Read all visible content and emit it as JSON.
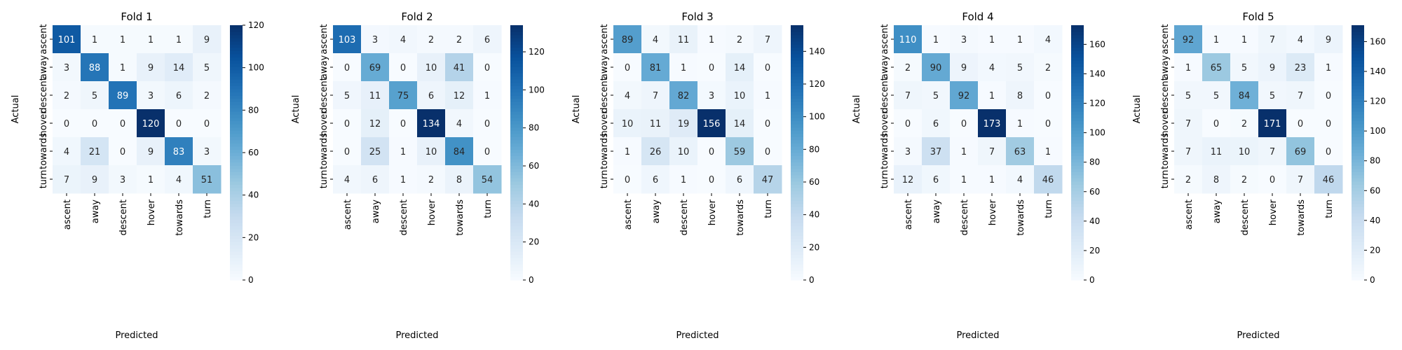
{
  "figure": {
    "xlabel": "Predicted",
    "ylabel": "Actual",
    "colormap": "Blues",
    "colormap_stops": [
      "#f7fbff",
      "#deebf7",
      "#c6dbef",
      "#9ecae1",
      "#6baed6",
      "#4292c6",
      "#2171b5",
      "#08519c",
      "#08306b"
    ]
  },
  "chart_data": [
    {
      "type": "heatmap",
      "title": "Fold 1",
      "x_categories": [
        "ascent",
        "away",
        "descent",
        "hover",
        "towards",
        "turn"
      ],
      "y_categories": [
        "ascent",
        "away",
        "descent",
        "hover",
        "towards",
        "turn"
      ],
      "values": [
        [
          101,
          1,
          1,
          1,
          1,
          9
        ],
        [
          3,
          88,
          1,
          9,
          14,
          5
        ],
        [
          2,
          5,
          89,
          3,
          6,
          2
        ],
        [
          0,
          0,
          0,
          120,
          0,
          0
        ],
        [
          4,
          21,
          0,
          9,
          83,
          3
        ],
        [
          7,
          9,
          3,
          1,
          4,
          51
        ]
      ],
      "colorbar": {
        "range": [
          0,
          120
        ],
        "ticks": [
          0,
          20,
          40,
          60,
          80,
          100,
          120
        ]
      }
    },
    {
      "type": "heatmap",
      "title": "Fold 2",
      "x_categories": [
        "ascent",
        "away",
        "descent",
        "hover",
        "towards",
        "turn"
      ],
      "y_categories": [
        "ascent",
        "away",
        "descent",
        "hover",
        "towards",
        "turn"
      ],
      "values": [
        [
          103,
          3,
          4,
          2,
          2,
          6
        ],
        [
          0,
          69,
          0,
          10,
          41,
          0
        ],
        [
          5,
          11,
          75,
          6,
          12,
          1
        ],
        [
          0,
          12,
          0,
          134,
          4,
          0
        ],
        [
          0,
          25,
          1,
          10,
          84,
          0
        ],
        [
          4,
          6,
          1,
          2,
          8,
          54
        ]
      ],
      "colorbar": {
        "range": [
          0,
          134
        ],
        "ticks": [
          0,
          20,
          40,
          60,
          80,
          100,
          120
        ]
      }
    },
    {
      "type": "heatmap",
      "title": "Fold 3",
      "x_categories": [
        "ascent",
        "away",
        "descent",
        "hover",
        "towards",
        "turn"
      ],
      "y_categories": [
        "ascent",
        "away",
        "descent",
        "hover",
        "towards",
        "turn"
      ],
      "values": [
        [
          89,
          4,
          11,
          1,
          2,
          7
        ],
        [
          0,
          81,
          1,
          0,
          14,
          0
        ],
        [
          4,
          7,
          82,
          3,
          10,
          1
        ],
        [
          10,
          11,
          19,
          156,
          14,
          0
        ],
        [
          1,
          26,
          10,
          0,
          59,
          0
        ],
        [
          0,
          6,
          1,
          0,
          6,
          47
        ]
      ],
      "colorbar": {
        "range": [
          0,
          156
        ],
        "ticks": [
          0,
          20,
          40,
          60,
          80,
          100,
          120,
          140
        ]
      }
    },
    {
      "type": "heatmap",
      "title": "Fold 4",
      "x_categories": [
        "ascent",
        "away",
        "descent",
        "hover",
        "towards",
        "turn"
      ],
      "y_categories": [
        "ascent",
        "away",
        "descent",
        "hover",
        "towards",
        "turn"
      ],
      "values": [
        [
          110,
          1,
          3,
          1,
          1,
          4
        ],
        [
          2,
          90,
          9,
          4,
          5,
          2
        ],
        [
          7,
          5,
          92,
          1,
          8,
          0
        ],
        [
          0,
          6,
          0,
          173,
          1,
          0
        ],
        [
          3,
          37,
          1,
          7,
          63,
          1
        ],
        [
          12,
          6,
          1,
          1,
          4,
          46
        ]
      ],
      "colorbar": {
        "range": [
          0,
          173
        ],
        "ticks": [
          0,
          20,
          40,
          60,
          80,
          100,
          120,
          140,
          160
        ]
      }
    },
    {
      "type": "heatmap",
      "title": "Fold 5",
      "x_categories": [
        "ascent",
        "away",
        "descent",
        "hover",
        "towards",
        "turn"
      ],
      "y_categories": [
        "ascent",
        "away",
        "descent",
        "hover",
        "towards",
        "turn"
      ],
      "values": [
        [
          92,
          1,
          1,
          7,
          4,
          9
        ],
        [
          1,
          65,
          5,
          9,
          23,
          1
        ],
        [
          5,
          5,
          84,
          5,
          7,
          0
        ],
        [
          7,
          0,
          2,
          171,
          0,
          0
        ],
        [
          7,
          11,
          10,
          7,
          69,
          0
        ],
        [
          2,
          8,
          2,
          0,
          7,
          46
        ]
      ],
      "colorbar": {
        "range": [
          0,
          171
        ],
        "ticks": [
          0,
          20,
          40,
          60,
          80,
          100,
          120,
          140,
          160
        ]
      }
    }
  ]
}
